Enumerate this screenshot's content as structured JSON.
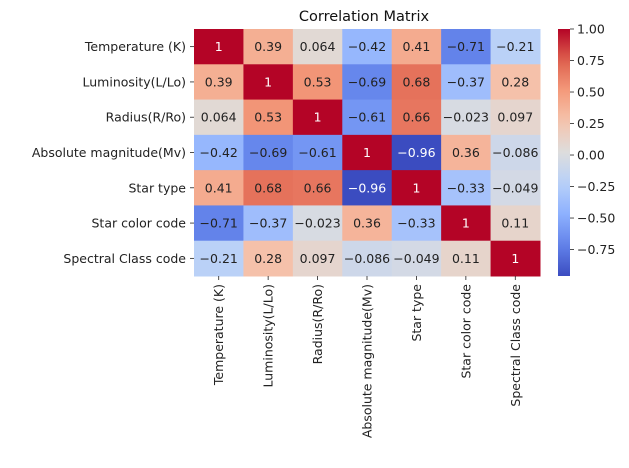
{
  "chart_data": {
    "type": "heatmap",
    "title": "Correlation Matrix",
    "x_categories": [
      "Temperature (K)",
      "Luminosity(L/Lo)",
      "Radius(R/Ro)",
      "Absolute magnitude(Mv)",
      "Star type",
      "Star color code",
      "Spectral Class code"
    ],
    "y_categories": [
      "Temperature (K)",
      "Luminosity(L/Lo)",
      "Radius(R/Ro)",
      "Absolute magnitude(Mv)",
      "Star type",
      "Star color code",
      "Spectral Class code"
    ],
    "values": [
      [
        1,
        0.39,
        0.064,
        -0.42,
        0.41,
        -0.71,
        -0.21
      ],
      [
        0.39,
        1,
        0.53,
        -0.69,
        0.68,
        -0.37,
        0.28
      ],
      [
        0.064,
        0.53,
        1,
        -0.61,
        0.66,
        -0.023,
        0.097
      ],
      [
        -0.42,
        -0.69,
        -0.61,
        1,
        -0.96,
        0.36,
        -0.086
      ],
      [
        0.41,
        0.68,
        0.66,
        -0.96,
        1,
        -0.33,
        -0.049
      ],
      [
        -0.71,
        -0.37,
        -0.023,
        0.36,
        -0.33,
        1,
        0.11
      ],
      [
        -0.21,
        0.28,
        0.097,
        -0.086,
        -0.049,
        0.11,
        1
      ]
    ],
    "colormap": "coolwarm",
    "colorbar": {
      "range": [
        -0.96,
        1
      ],
      "ticks": [
        1.0,
        0.75,
        0.5,
        0.25,
        0.0,
        -0.25,
        -0.5,
        -0.75
      ],
      "tick_labels": [
        "1.00",
        "0.75",
        "0.50",
        "0.25",
        "0.00",
        "−0.25",
        "−0.50",
        "−0.75"
      ]
    }
  }
}
